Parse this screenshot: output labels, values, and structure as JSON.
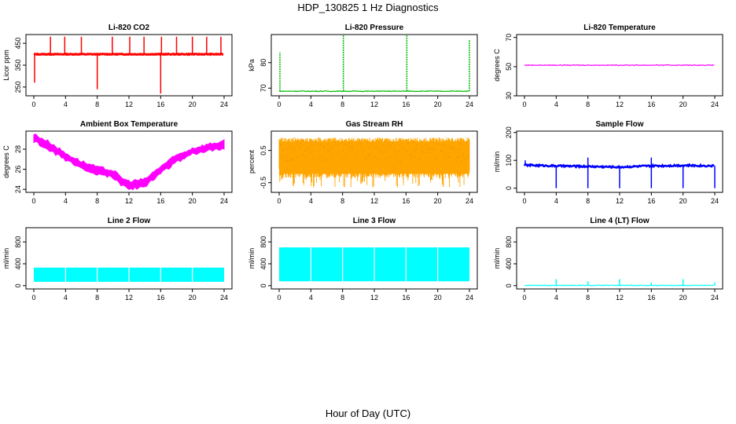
{
  "figure": {
    "title": "HDP_130825  1 Hz Diagnostics",
    "xlabel": "Hour of Day (UTC)"
  },
  "chart_data": [
    {
      "type": "line",
      "title": "Li-820 CO2",
      "ylabel": "Licor ppm",
      "color": "#ff0000",
      "xlim": [
        0,
        24
      ],
      "ylim": [
        210,
        490
      ],
      "xticks": [
        "0",
        "4",
        "8",
        "12",
        "16",
        "20",
        "24"
      ],
      "yticks": [
        250,
        350,
        450
      ],
      "baseline": 400,
      "spikes": [
        {
          "x": 0.1,
          "y": 270
        },
        {
          "x": 2.1,
          "y": 480
        },
        {
          "x": 3.9,
          "y": 480
        },
        {
          "x": 6.0,
          "y": 480
        },
        {
          "x": 8.0,
          "y": 240
        },
        {
          "x": 9.9,
          "y": 480
        },
        {
          "x": 12.1,
          "y": 480
        },
        {
          "x": 13.9,
          "y": 480
        },
        {
          "x": 16.0,
          "y": 220
        },
        {
          "x": 16.1,
          "y": 480
        },
        {
          "x": 18.0,
          "y": 480
        },
        {
          "x": 20.0,
          "y": 480
        },
        {
          "x": 21.8,
          "y": 480
        },
        {
          "x": 23.6,
          "y": 480
        }
      ]
    },
    {
      "type": "line",
      "title": "Li-820 Pressure",
      "ylabel": "kPa",
      "color": "#00bb00",
      "xlim": [
        0,
        24
      ],
      "ylim": [
        67,
        91
      ],
      "xticks": [
        "0",
        "4",
        "8",
        "12",
        "16",
        "20",
        "24"
      ],
      "yticks": [
        70,
        80
      ],
      "baseline": 68.8,
      "spikes": [
        {
          "x": 0.1,
          "y": 84
        },
        {
          "x": 8.1,
          "y": 91
        },
        {
          "x": 16.1,
          "y": 91
        },
        {
          "x": 24.0,
          "y": 89
        }
      ]
    },
    {
      "type": "line",
      "title": "Li-820 Temperature",
      "ylabel": "degrees C",
      "color": "#ff00ff",
      "xlim": [
        0,
        24
      ],
      "ylim": [
        30,
        72
      ],
      "xticks": [
        "0",
        "4",
        "8",
        "12",
        "16",
        "20",
        "24"
      ],
      "yticks": [
        30,
        50,
        70
      ],
      "baseline": 51
    },
    {
      "type": "area",
      "title": "Ambient Box Temperature",
      "ylabel": "degrees C",
      "color": "#ff00ff",
      "xlim": [
        0,
        24
      ],
      "ylim": [
        23.7,
        29.8
      ],
      "xticks": [
        "0",
        "4",
        "8",
        "12",
        "16",
        "20",
        "24"
      ],
      "yticks": [
        24,
        26,
        28
      ],
      "x": [
        0,
        2,
        4,
        6,
        8,
        10,
        11,
        12,
        13,
        14,
        16,
        18,
        20,
        22,
        24
      ],
      "upper": [
        29.5,
        28.7,
        27.6,
        26.8,
        26.2,
        25.9,
        25.2,
        24.8,
        24.9,
        25.0,
        26.3,
        27.4,
        28.1,
        28.5,
        28.8
      ],
      "lower": [
        28.8,
        27.9,
        26.9,
        26.1,
        25.5,
        25.2,
        24.4,
        24.1,
        24.1,
        24.3,
        25.6,
        26.7,
        27.5,
        27.9,
        28.1
      ]
    },
    {
      "type": "area",
      "title": "Gas Stream RH",
      "ylabel": "percent",
      "color": "#ffa500",
      "xlim": [
        0,
        24
      ],
      "ylim": [
        -0.8,
        1.1
      ],
      "xticks": [
        "0",
        "4",
        "8",
        "12",
        "16",
        "20",
        "24"
      ],
      "yticks": [
        -0.5,
        0.5
      ],
      "upper_value": 0.9,
      "lower_value": -0.35
    },
    {
      "type": "line",
      "title": "Sample Flow",
      "ylabel": "ml/min",
      "color": "#0000ff",
      "xlim": [
        0,
        24
      ],
      "ylim": [
        -15,
        205
      ],
      "xticks": [
        "0",
        "4",
        "8",
        "12",
        "16",
        "20",
        "24"
      ],
      "yticks": [
        0,
        100,
        200
      ],
      "x": [
        0,
        4,
        8,
        12,
        16,
        20,
        24
      ],
      "values": [
        83,
        80,
        78,
        76,
        80,
        82,
        80
      ],
      "spikes": [
        {
          "x": 0.1,
          "y": 100
        },
        {
          "x": 4.0,
          "y": 0
        },
        {
          "x": 8.0,
          "y": 110
        },
        {
          "x": 8.0,
          "y": 0
        },
        {
          "x": 12.0,
          "y": 0
        },
        {
          "x": 16.0,
          "y": 110
        },
        {
          "x": 16.0,
          "y": 0
        },
        {
          "x": 20.0,
          "y": 0
        },
        {
          "x": 24.0,
          "y": 0
        }
      ]
    },
    {
      "type": "area",
      "title": "Line 2 Flow",
      "ylabel": "ml/min",
      "color": "#00ffff",
      "xlim": [
        0,
        24
      ],
      "ylim": [
        -60,
        1060
      ],
      "xticks": [
        "0",
        "4",
        "8",
        "12",
        "16",
        "20",
        "24"
      ],
      "yticks": [
        0,
        400,
        800
      ],
      "upper_value": 330,
      "lower_value": 70,
      "gaps": [
        4,
        8,
        12,
        16,
        20
      ]
    },
    {
      "type": "area",
      "title": "Line 3 Flow",
      "ylabel": "ml/min",
      "color": "#00ffff",
      "xlim": [
        0,
        24
      ],
      "ylim": [
        -60,
        1060
      ],
      "xticks": [
        "0",
        "4",
        "8",
        "12",
        "16",
        "20",
        "24"
      ],
      "yticks": [
        0,
        400,
        800
      ],
      "upper_value": 700,
      "lower_value": 80,
      "gaps": [
        4,
        8,
        12,
        16,
        20
      ]
    },
    {
      "type": "line",
      "title": "Line 4 (LT) Flow",
      "ylabel": "ml/min",
      "color": "#00ffff",
      "xlim": [
        0,
        24
      ],
      "ylim": [
        -60,
        1060
      ],
      "xticks": [
        "0",
        "4",
        "8",
        "12",
        "16",
        "20",
        "24"
      ],
      "yticks": [
        0,
        400,
        800
      ],
      "baseline": 5,
      "spikes": [
        {
          "x": 4.0,
          "y": 120
        },
        {
          "x": 8.0,
          "y": 80
        },
        {
          "x": 12.0,
          "y": 120
        },
        {
          "x": 16.0,
          "y": 60
        },
        {
          "x": 20.0,
          "y": 120
        },
        {
          "x": 24.0,
          "y": 60
        }
      ]
    }
  ]
}
